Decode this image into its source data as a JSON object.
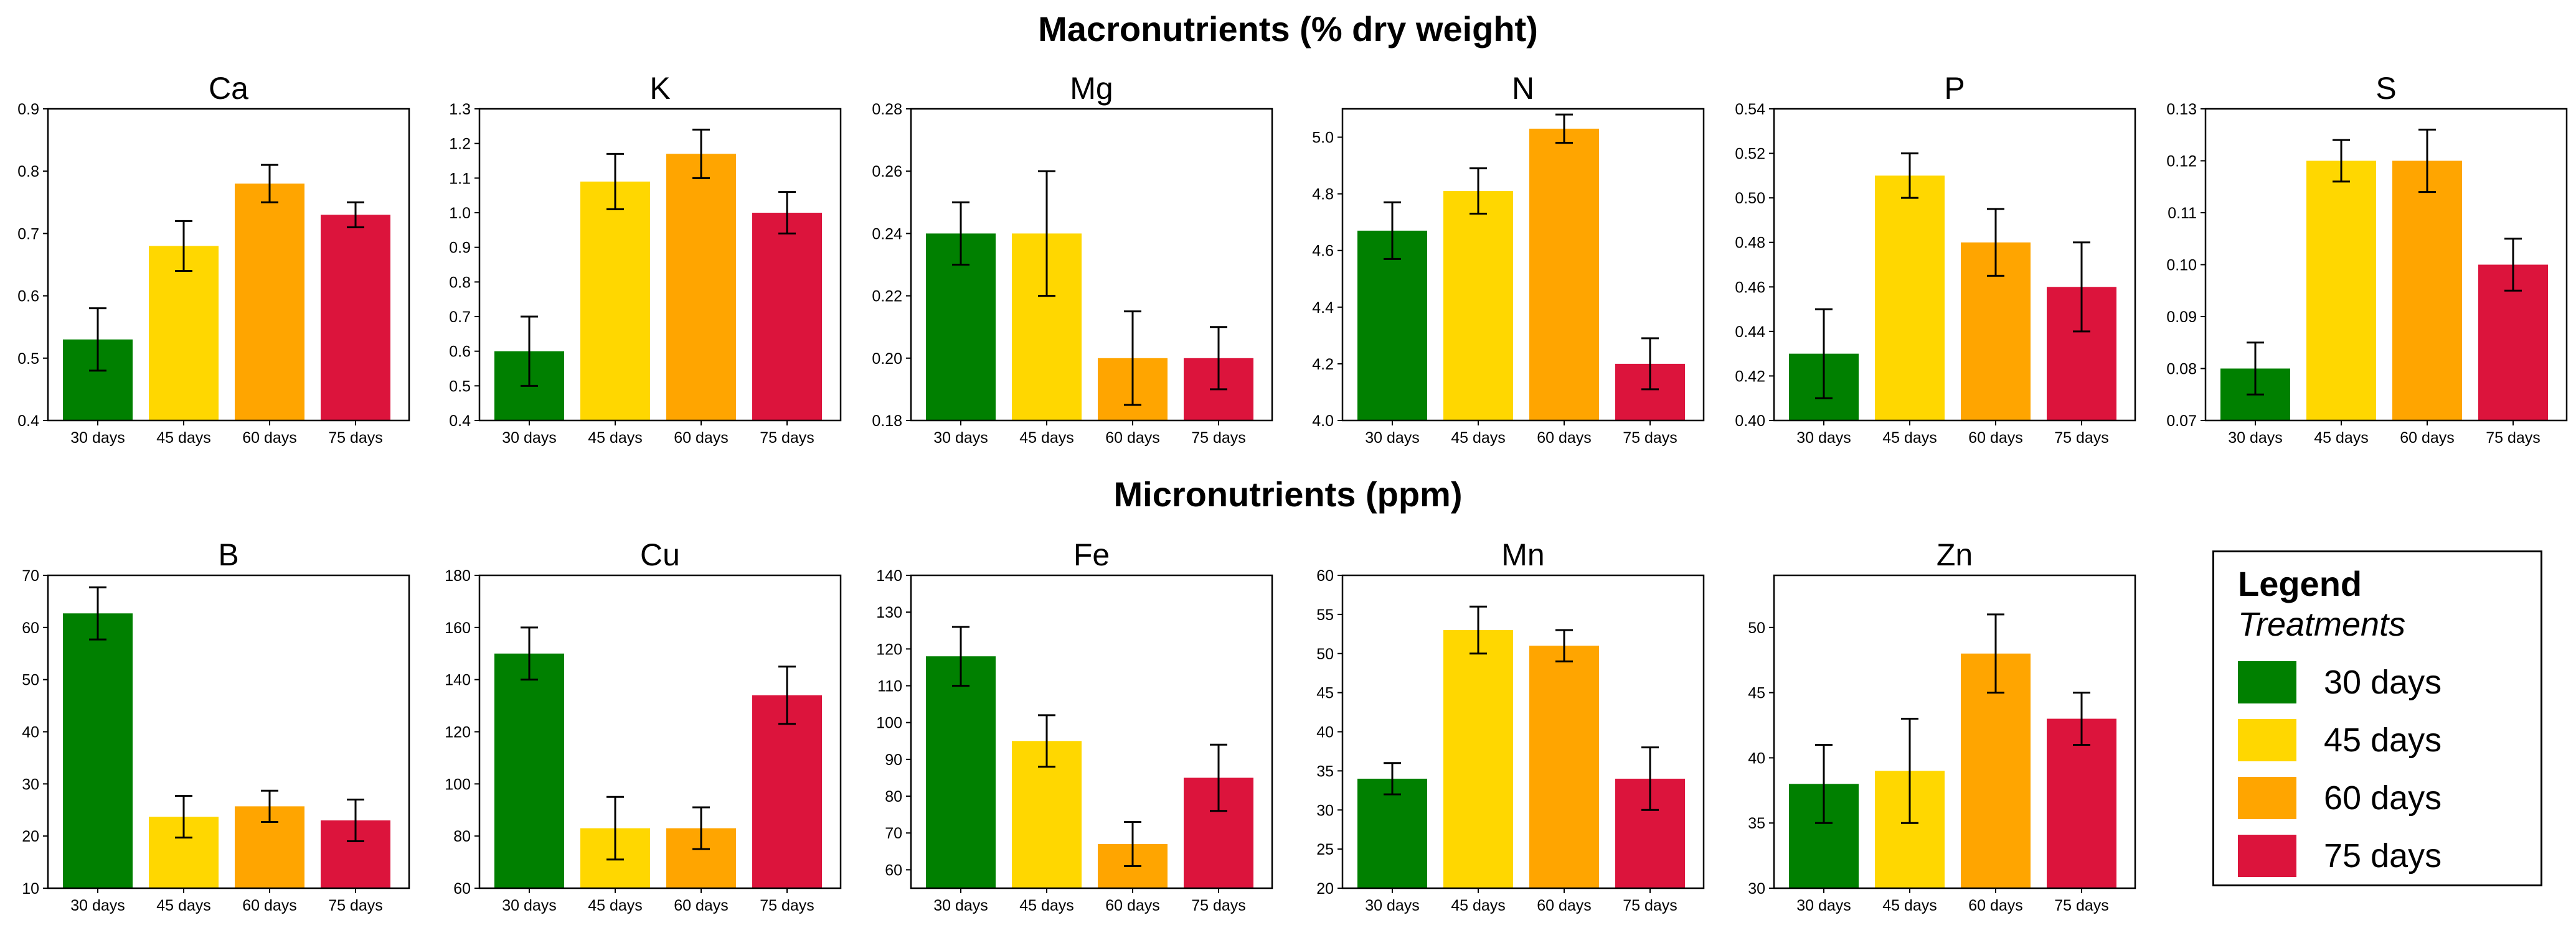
{
  "headings": {
    "macro": "Macronutrients (% dry weight)",
    "micro": "Micronutrients (ppm)"
  },
  "legend": {
    "title": "Legend",
    "subtitle": "Treatments",
    "items": [
      {
        "label": "30 days",
        "color": "#008000"
      },
      {
        "label": "45 days",
        "color": "#FFD700"
      },
      {
        "label": "60 days",
        "color": "#FFA500"
      },
      {
        "label": "75 days",
        "color": "#DC143C"
      }
    ]
  },
  "chart_data": [
    {
      "type": "bar",
      "group": "macro",
      "title": "Ca",
      "categories": [
        "30 days",
        "45 days",
        "60 days",
        "75 days"
      ],
      "values": [
        0.53,
        0.68,
        0.78,
        0.73
      ],
      "errors": [
        0.05,
        0.04,
        0.03,
        0.02
      ],
      "ylim": [
        0.4,
        0.9
      ],
      "yticks": [
        "0.4",
        "0.5",
        "0.6",
        "0.7",
        "0.8",
        "0.9"
      ]
    },
    {
      "type": "bar",
      "group": "macro",
      "title": "K",
      "categories": [
        "30 days",
        "45 days",
        "60 days",
        "75 days"
      ],
      "values": [
        0.6,
        1.09,
        1.17,
        1.0
      ],
      "errors": [
        0.1,
        0.08,
        0.07,
        0.06
      ],
      "ylim": [
        0.4,
        1.3
      ],
      "yticks": [
        "0.4",
        "0.5",
        "0.6",
        "0.7",
        "0.8",
        "0.9",
        "1.0",
        "1.1",
        "1.2",
        "1.3"
      ]
    },
    {
      "type": "bar",
      "group": "macro",
      "title": "Mg",
      "categories": [
        "30 days",
        "45 days",
        "60 days",
        "75 days"
      ],
      "values": [
        0.24,
        0.24,
        0.2,
        0.2
      ],
      "errors": [
        0.01,
        0.02,
        0.015,
        0.01
      ],
      "ylim": [
        0.18,
        0.28
      ],
      "yticks": [
        "0.18",
        "0.20",
        "0.22",
        "0.24",
        "0.26",
        "0.28"
      ]
    },
    {
      "type": "bar",
      "group": "macro",
      "title": "N",
      "categories": [
        "30 days",
        "45 days",
        "60 days",
        "75 days"
      ],
      "values": [
        4.67,
        4.81,
        5.03,
        4.2
      ],
      "errors": [
        0.1,
        0.08,
        0.05,
        0.09
      ],
      "ylim": [
        4.0,
        5.1
      ],
      "yticks": [
        "4.0",
        "4.2",
        "4.4",
        "4.6",
        "4.8",
        "5.0"
      ]
    },
    {
      "type": "bar",
      "group": "macro",
      "title": "P",
      "categories": [
        "30 days",
        "45 days",
        "60 days",
        "75 days"
      ],
      "values": [
        0.43,
        0.51,
        0.48,
        0.46
      ],
      "errors": [
        0.02,
        0.01,
        0.015,
        0.02
      ],
      "ylim": [
        0.4,
        0.54
      ],
      "yticks": [
        "0.40",
        "0.42",
        "0.44",
        "0.46",
        "0.48",
        "0.50",
        "0.52",
        "0.54"
      ]
    },
    {
      "type": "bar",
      "group": "macro",
      "title": "S",
      "categories": [
        "30 days",
        "45 days",
        "60 days",
        "75 days"
      ],
      "values": [
        0.08,
        0.12,
        0.12,
        0.1
      ],
      "errors": [
        0.005,
        0.004,
        0.006,
        0.005
      ],
      "ylim": [
        0.07,
        0.13
      ],
      "yticks": [
        "0.07",
        "0.08",
        "0.09",
        "0.10",
        "0.11",
        "0.12",
        "0.13"
      ]
    },
    {
      "type": "bar",
      "group": "micro",
      "title": "B",
      "categories": [
        "30 days",
        "45 days",
        "60 days",
        "75 days"
      ],
      "values": [
        62.7,
        23.7,
        25.7,
        23.0
      ],
      "errors": [
        5.0,
        4.0,
        3.0,
        4.0
      ],
      "ylim": [
        10,
        70
      ],
      "yticks": [
        "10",
        "20",
        "30",
        "40",
        "50",
        "60",
        "70"
      ]
    },
    {
      "type": "bar",
      "group": "micro",
      "title": "Cu",
      "categories": [
        "30 days",
        "45 days",
        "60 days",
        "75 days"
      ],
      "values": [
        150,
        83,
        83,
        134
      ],
      "errors": [
        10,
        12,
        8,
        11
      ],
      "ylim": [
        60,
        180
      ],
      "yticks": [
        "60",
        "80",
        "100",
        "120",
        "140",
        "160",
        "180"
      ]
    },
    {
      "type": "bar",
      "group": "micro",
      "title": "Fe",
      "categories": [
        "30 days",
        "45 days",
        "60 days",
        "75 days"
      ],
      "values": [
        118,
        95,
        67,
        85
      ],
      "errors": [
        8,
        7,
        6,
        9
      ],
      "ylim": [
        55,
        140
      ],
      "yticks": [
        "60",
        "70",
        "80",
        "90",
        "100",
        "110",
        "120",
        "130",
        "140"
      ]
    },
    {
      "type": "bar",
      "group": "micro",
      "title": "Mn",
      "categories": [
        "30 days",
        "45 days",
        "60 days",
        "75 days"
      ],
      "values": [
        34,
        53,
        51,
        34
      ],
      "errors": [
        2,
        3,
        2,
        4
      ],
      "ylim": [
        20,
        60
      ],
      "yticks": [
        "20",
        "25",
        "30",
        "35",
        "40",
        "45",
        "50",
        "55",
        "60"
      ]
    },
    {
      "type": "bar",
      "group": "micro",
      "title": "Zn",
      "categories": [
        "30 days",
        "45 days",
        "60 days",
        "75 days"
      ],
      "values": [
        38,
        39,
        48,
        43
      ],
      "errors": [
        3,
        4,
        3,
        2
      ],
      "ylim": [
        30,
        54
      ],
      "yticks": [
        "30",
        "35",
        "40",
        "45",
        "50"
      ]
    }
  ]
}
